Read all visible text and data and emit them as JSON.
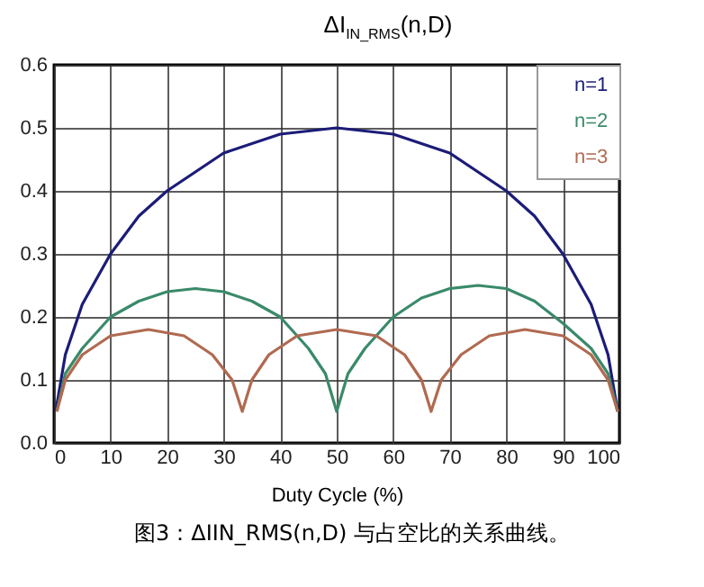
{
  "chart_data": {
    "type": "line",
    "title": "ΔI$_{IN_RMS}$(n,D)",
    "xlabel": "Duty Cycle (%)",
    "annotations": [
      "图3：ΔIIN_RMS(n,D) 与占空比的关系曲线。"
    ],
    "xlim": [
      0,
      100
    ],
    "xticks": [
      0,
      10,
      20,
      30,
      40,
      50,
      60,
      70,
      80,
      90,
      100
    ],
    "ylim": [
      0,
      0.6
    ],
    "yticks": [
      {
        "value": 0,
        "label": "0.0"
      },
      0.1,
      0.2,
      0.3,
      0.4,
      0.5,
      0.6
    ],
    "grid": true,
    "legend": "top right",
    "marker": "none",
    "line_style": "solid",
    "series": [
      {
        "name": "n=1",
        "color": "#1c1c78",
        "x": [
          0.3,
          2,
          5,
          10,
          15,
          20,
          30,
          40,
          50,
          60,
          70,
          80,
          85,
          90,
          95,
          98,
          99.7
        ],
        "values": [
          0.05,
          0.14,
          0.22,
          0.3,
          0.36,
          0.4,
          0.46,
          0.49,
          0.5,
          0.49,
          0.46,
          0.4,
          0.36,
          0.3,
          0.22,
          0.14,
          0.05
        ]
      },
      {
        "name": "n=2",
        "color": "#3a8a6a",
        "x": [
          0.5,
          2,
          5,
          10,
          15,
          20,
          25,
          30,
          35,
          40,
          45,
          48,
          50,
          52,
          55,
          60,
          65,
          70,
          75,
          80,
          85,
          90,
          95,
          98,
          99.7
        ],
        "values": [
          0.05,
          0.11,
          0.15,
          0.2,
          0.225,
          0.24,
          0.245,
          0.24,
          0.225,
          0.2,
          0.15,
          0.11,
          0.05,
          0.11,
          0.15,
          0.2,
          0.23,
          0.245,
          0.25,
          0.245,
          0.225,
          0.19,
          0.15,
          0.11,
          0.05
        ]
      },
      {
        "name": "n=3",
        "color": "#b06a50",
        "x": [
          0.5,
          2,
          5,
          10,
          16.7,
          23,
          28,
          31.5,
          33.3,
          35,
          38,
          43,
          50,
          57,
          62,
          65,
          66.7,
          68.5,
          72,
          77,
          83.3,
          90,
          95,
          98,
          99.7
        ],
        "values": [
          0.05,
          0.1,
          0.14,
          0.17,
          0.18,
          0.17,
          0.14,
          0.1,
          0.05,
          0.1,
          0.14,
          0.17,
          0.18,
          0.17,
          0.14,
          0.1,
          0.05,
          0.1,
          0.14,
          0.17,
          0.18,
          0.17,
          0.14,
          0.1,
          0.05
        ]
      }
    ]
  }
}
